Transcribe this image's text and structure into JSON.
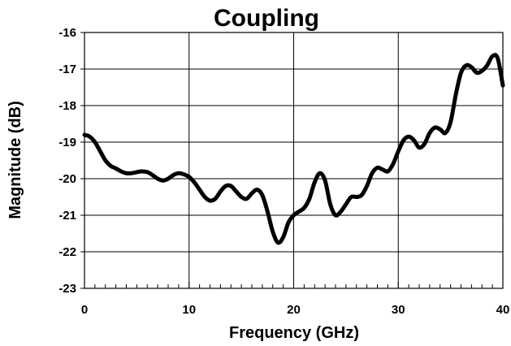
{
  "chart_data": {
    "type": "line",
    "title": "Coupling",
    "xlabel": "Frequency (GHz)",
    "ylabel": "Magnitude (dB)",
    "xlim": [
      0,
      40
    ],
    "ylim": [
      -23,
      -16
    ],
    "xticks": [
      0,
      10,
      20,
      30,
      40
    ],
    "yticks": [
      -16,
      -17,
      -18,
      -19,
      -20,
      -21,
      -22,
      -23
    ],
    "x_minor_step": 1,
    "grid": true,
    "line_color": "#000000",
    "series": [
      {
        "x": [
          0,
          0.5,
          1,
          1.5,
          2,
          2.5,
          3,
          3.5,
          4,
          4.5,
          5,
          5.5,
          6,
          6.5,
          7,
          7.5,
          8,
          8.5,
          9,
          9.5,
          10,
          10.5,
          11,
          11.5,
          12,
          12.5,
          13,
          13.5,
          14,
          14.5,
          15,
          15.5,
          16,
          16.5,
          17,
          17.5,
          18,
          18.5,
          19,
          19.5,
          20,
          20.5,
          21,
          21.5,
          22,
          22.5,
          23,
          23.5,
          24,
          24.5,
          25,
          25.5,
          26,
          26.5,
          27,
          27.5,
          28,
          28.5,
          29,
          29.5,
          30,
          30.5,
          31,
          31.5,
          32,
          32.5,
          33,
          33.5,
          34,
          34.5,
          35,
          35.5,
          36,
          36.5,
          37,
          37.5,
          38,
          38.5,
          39,
          39.5,
          40
        ],
        "y": [
          -18.8,
          -18.85,
          -19.0,
          -19.25,
          -19.5,
          -19.65,
          -19.72,
          -19.8,
          -19.85,
          -19.85,
          -19.82,
          -19.8,
          -19.82,
          -19.9,
          -20.0,
          -20.05,
          -20.0,
          -19.9,
          -19.85,
          -19.88,
          -19.95,
          -20.1,
          -20.3,
          -20.5,
          -20.6,
          -20.55,
          -20.35,
          -20.2,
          -20.2,
          -20.35,
          -20.5,
          -20.55,
          -20.4,
          -20.3,
          -20.45,
          -20.9,
          -21.45,
          -21.75,
          -21.6,
          -21.2,
          -21.0,
          -20.9,
          -20.8,
          -20.55,
          -20.1,
          -19.85,
          -20.05,
          -20.7,
          -21.0,
          -20.9,
          -20.7,
          -20.5,
          -20.5,
          -20.45,
          -20.2,
          -19.85,
          -19.7,
          -19.75,
          -19.8,
          -19.6,
          -19.25,
          -18.95,
          -18.85,
          -18.95,
          -19.15,
          -19.05,
          -18.75,
          -18.6,
          -18.65,
          -18.75,
          -18.45,
          -17.7,
          -17.1,
          -16.9,
          -16.95,
          -17.1,
          -17.05,
          -16.9,
          -16.65,
          -16.7,
          -17.45
        ]
      }
    ]
  }
}
